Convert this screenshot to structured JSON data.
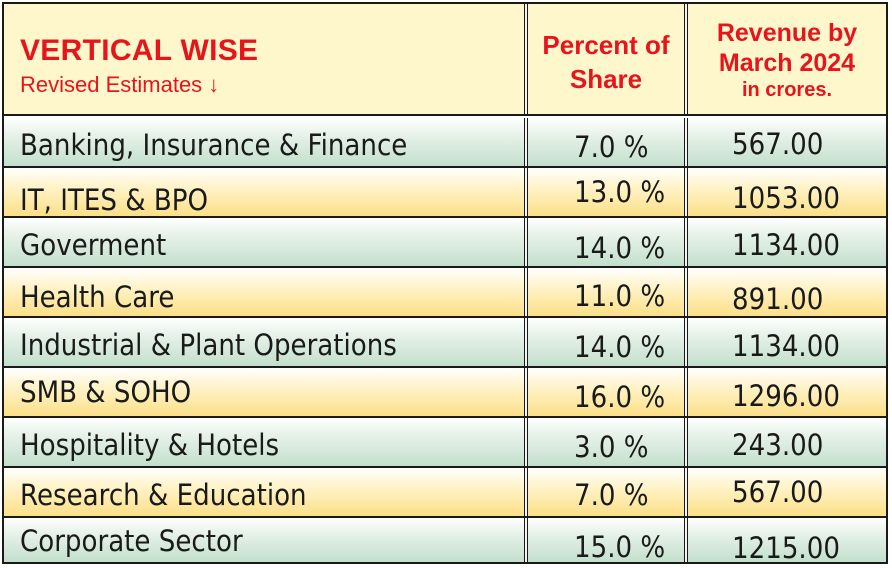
{
  "header": {
    "title": "VERTICAL WISE",
    "subtitle": "Revised Estimates ↓",
    "col_share": [
      "Percent of",
      "Share"
    ],
    "col_revenue": [
      "Revenue by",
      "March 2024"
    ],
    "col_revenue_unit": "in crores."
  },
  "rows": [
    {
      "label": "Banking, Insurance & Finance",
      "share": "7.0 %",
      "revenue": "567.00",
      "shade": "green"
    },
    {
      "label": "IT, ITES &  BPO",
      "share": "13.0 %",
      "revenue": "1053.00",
      "shade": "yellow"
    },
    {
      "label": "Goverment",
      "share": "14.0 %",
      "revenue": "1134.00",
      "shade": "green"
    },
    {
      "label": "Health Care",
      "share": "11.0 %",
      "revenue": "891.00",
      "shade": "yellow"
    },
    {
      "label": "Industrial & Plant Operations",
      "share": "14.0 %",
      "revenue": "1134.00",
      "shade": "green"
    },
    {
      "label": "SMB & SOHO",
      "share": "16.0 %",
      "revenue": "1296.00",
      "shade": "yellow"
    },
    {
      "label": "Hospitality & Hotels",
      "share": "3.0 %",
      "revenue": "243.00",
      "shade": "green"
    },
    {
      "label": "Research & Education",
      "share": "7.0 %",
      "revenue": "567.00",
      "shade": "yellow"
    },
    {
      "label": "Corporate Sector",
      "share": "15.0 %",
      "revenue": "1215.00",
      "shade": "green"
    }
  ],
  "colors": {
    "header_text": "#e8141c",
    "header_bg": "#fff7cc",
    "green_row": "#c3dfcc",
    "yellow_row": "#fbe088"
  }
}
